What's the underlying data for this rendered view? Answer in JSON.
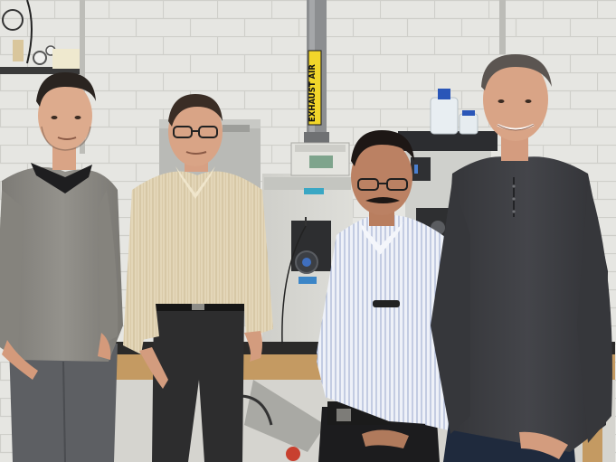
{
  "scene": {
    "exhaust_label": "EXHAUST AIR",
    "colors": {
      "wall": "#e4e4e0",
      "mortar": "#cfcfca",
      "exhaust_tag": "#f2d62a",
      "cabinet": "#d6d6d1",
      "floor": "#c9c7c2",
      "sweater_grey": "#8e8c86",
      "shirt_cream": "#e2d4b4",
      "shirt_blue_stripe": "#dfe6f2",
      "henley_charcoal": "#3b3c40",
      "skin": "#d9a486",
      "hair_dark": "#2a2420"
    }
  }
}
